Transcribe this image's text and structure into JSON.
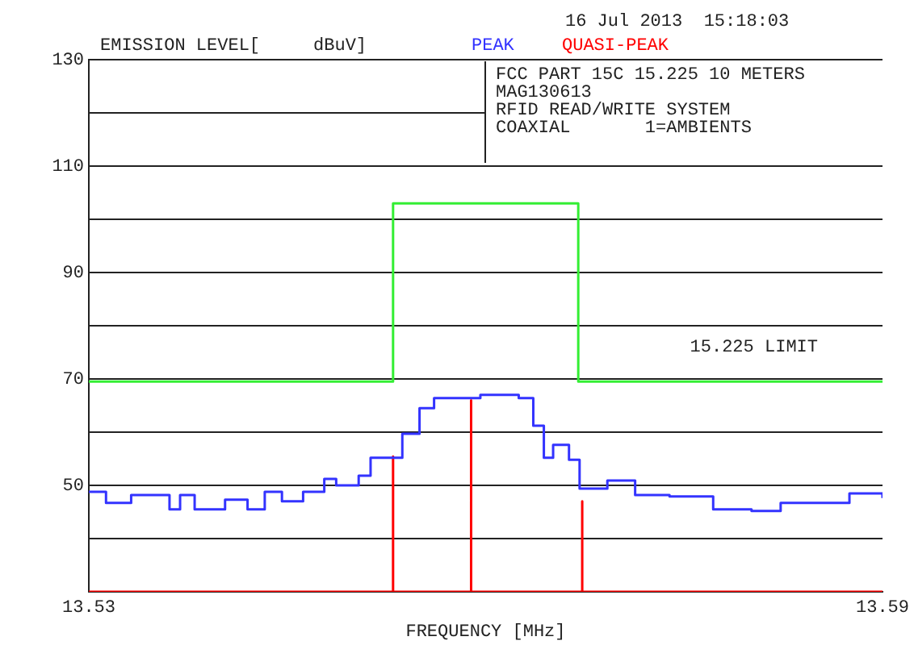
{
  "chart_data": {
    "type": "line",
    "ylabel": "EMISSION LEVEL[     dBuV]",
    "xlabel": "FREQUENCY [MHz]",
    "annotations": [
      "16 Jul 2013  15:18:03",
      "FCC PART 15C 15.225 10 METERS",
      "MAG130613",
      "RFID READ/WRITE SYSTEM",
      "COAXIAL       1=AMBIENTS"
    ],
    "legend": "top",
    "grid": "y",
    "xlim": [
      13.53,
      13.59
    ],
    "xticks": [
      13.53,
      13.59
    ],
    "ylim": [
      30,
      130
    ],
    "yticks": [
      {
        "value": 30,
        "label": null
      },
      {
        "value": 40,
        "label": null
      },
      50,
      {
        "value": 60,
        "label": null
      },
      70,
      {
        "value": 80,
        "label": null
      },
      90,
      {
        "value": 100,
        "label": null
      },
      110,
      {
        "value": 120,
        "label": null
      },
      130
    ],
    "series": [
      {
        "name": "PEAK",
        "type": "step",
        "color": "#3333ff",
        "x": [
          13.53,
          13.5313,
          13.5332,
          13.5361,
          13.5369,
          13.538,
          13.5403,
          13.542,
          13.5433,
          13.5446,
          13.5462,
          13.5478,
          13.5487,
          13.5504,
          13.5513,
          13.5524,
          13.5537,
          13.555,
          13.5561,
          13.5583,
          13.5596,
          13.5625,
          13.5636,
          13.5644,
          13.5651,
          13.5663,
          13.5671,
          13.5692,
          13.5713,
          13.5739,
          13.5772,
          13.5801,
          13.5823,
          13.5847,
          13.5875,
          13.59
        ],
        "values": [
          48.8,
          46.7,
          48.2,
          45.5,
          48.2,
          45.5,
          47.3,
          45.5,
          48.8,
          47,
          48.8,
          51.2,
          50,
          51.8,
          55.2,
          55.2,
          59.7,
          64.5,
          66.4,
          66.4,
          67,
          66.4,
          61.2,
          55.2,
          57.6,
          54.8,
          49.4,
          50.9,
          48.2,
          47.9,
          45.5,
          45.2,
          46.7,
          46.7,
          48.5,
          47.6
        ]
      },
      {
        "name": "QUASI-PEAK",
        "type": "line",
        "color": "#ff0000",
        "x": [
          13.53,
          13.553,
          13.553,
          13.553,
          13.5589,
          13.5589,
          13.5589,
          13.5673,
          13.5673,
          13.5673,
          13.59
        ],
        "values": [
          30,
          30,
          55.4,
          30,
          30,
          66,
          30,
          30,
          47,
          30,
          30
        ]
      },
      {
        "name": "15.225 LIMIT",
        "type": "line",
        "color": "#33ee33",
        "x": [
          13.53,
          13.553,
          13.553,
          13.567,
          13.567,
          13.59
        ],
        "values": [
          69.5,
          69.5,
          103,
          103,
          69.5,
          69.5
        ]
      }
    ]
  }
}
